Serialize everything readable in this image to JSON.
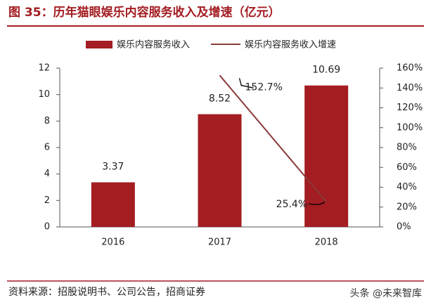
{
  "chart_data": {
    "type": "bar_line",
    "title": "图 35：历年猫眼娱乐内容服务收入及增速（亿元）",
    "categories": [
      "2016",
      "2017",
      "2018"
    ],
    "series": [
      {
        "name": "娱乐内容服务收入",
        "type": "bar",
        "color": "#a31d22",
        "values": [
          3.37,
          8.52,
          10.69
        ]
      },
      {
        "name": "娱乐内容服务收入增速",
        "type": "line",
        "axis": "y2",
        "color": "#8b3a3a",
        "values": [
          null,
          152.7,
          25.4
        ],
        "value_labels": [
          null,
          "152.7%",
          "25.4%"
        ]
      }
    ],
    "ylim": [
      0,
      12
    ],
    "yticks": [
      0,
      2,
      4,
      6,
      8,
      10,
      12
    ],
    "y2lim": [
      0,
      160
    ],
    "y2ticks": [
      {
        "value": 0,
        "label": "0%"
      },
      {
        "value": 20,
        "label": "20%"
      },
      {
        "value": 40,
        "label": "40%"
      },
      {
        "value": 60,
        "label": "60%"
      },
      {
        "value": 80,
        "label": "80%"
      },
      {
        "value": 100,
        "label": "100%"
      },
      {
        "value": 120,
        "label": "120%"
      },
      {
        "value": 140,
        "label": "140%"
      },
      {
        "value": 160,
        "label": "160%"
      }
    ],
    "legend": "top",
    "source": "资料来源：招股说明书、公司公告，招商证券",
    "watermark": "头条 @未来智库"
  }
}
